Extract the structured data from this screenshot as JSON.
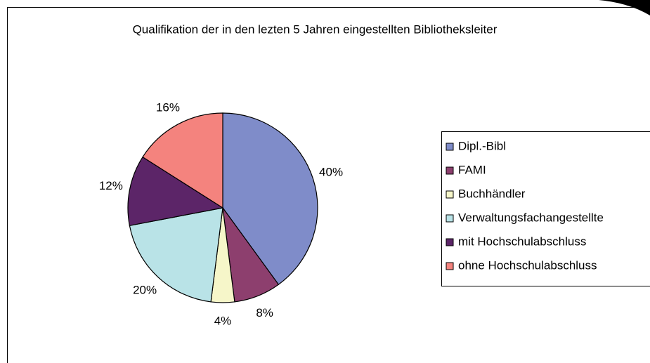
{
  "chart_data": {
    "type": "pie",
    "title": "Qualifikation der in den lezten 5 Jahren eingestellten Bibliotheksleiter",
    "categories": [
      "Dipl.-Bibl",
      "FAMI",
      "Buchhändler",
      "Verwaltungsfachangestellte",
      "mit Hochschulabschluss",
      "ohne Hochschulabschluss"
    ],
    "values": [
      40,
      8,
      4,
      20,
      12,
      16
    ],
    "value_labels": [
      "40%",
      "8%",
      "4%",
      "20%",
      "12%",
      "16%"
    ],
    "colors": [
      "#7f8cc9",
      "#8d3f6e",
      "#f6f6c9",
      "#b9e3e7",
      "#5c2568",
      "#f4837e"
    ]
  }
}
